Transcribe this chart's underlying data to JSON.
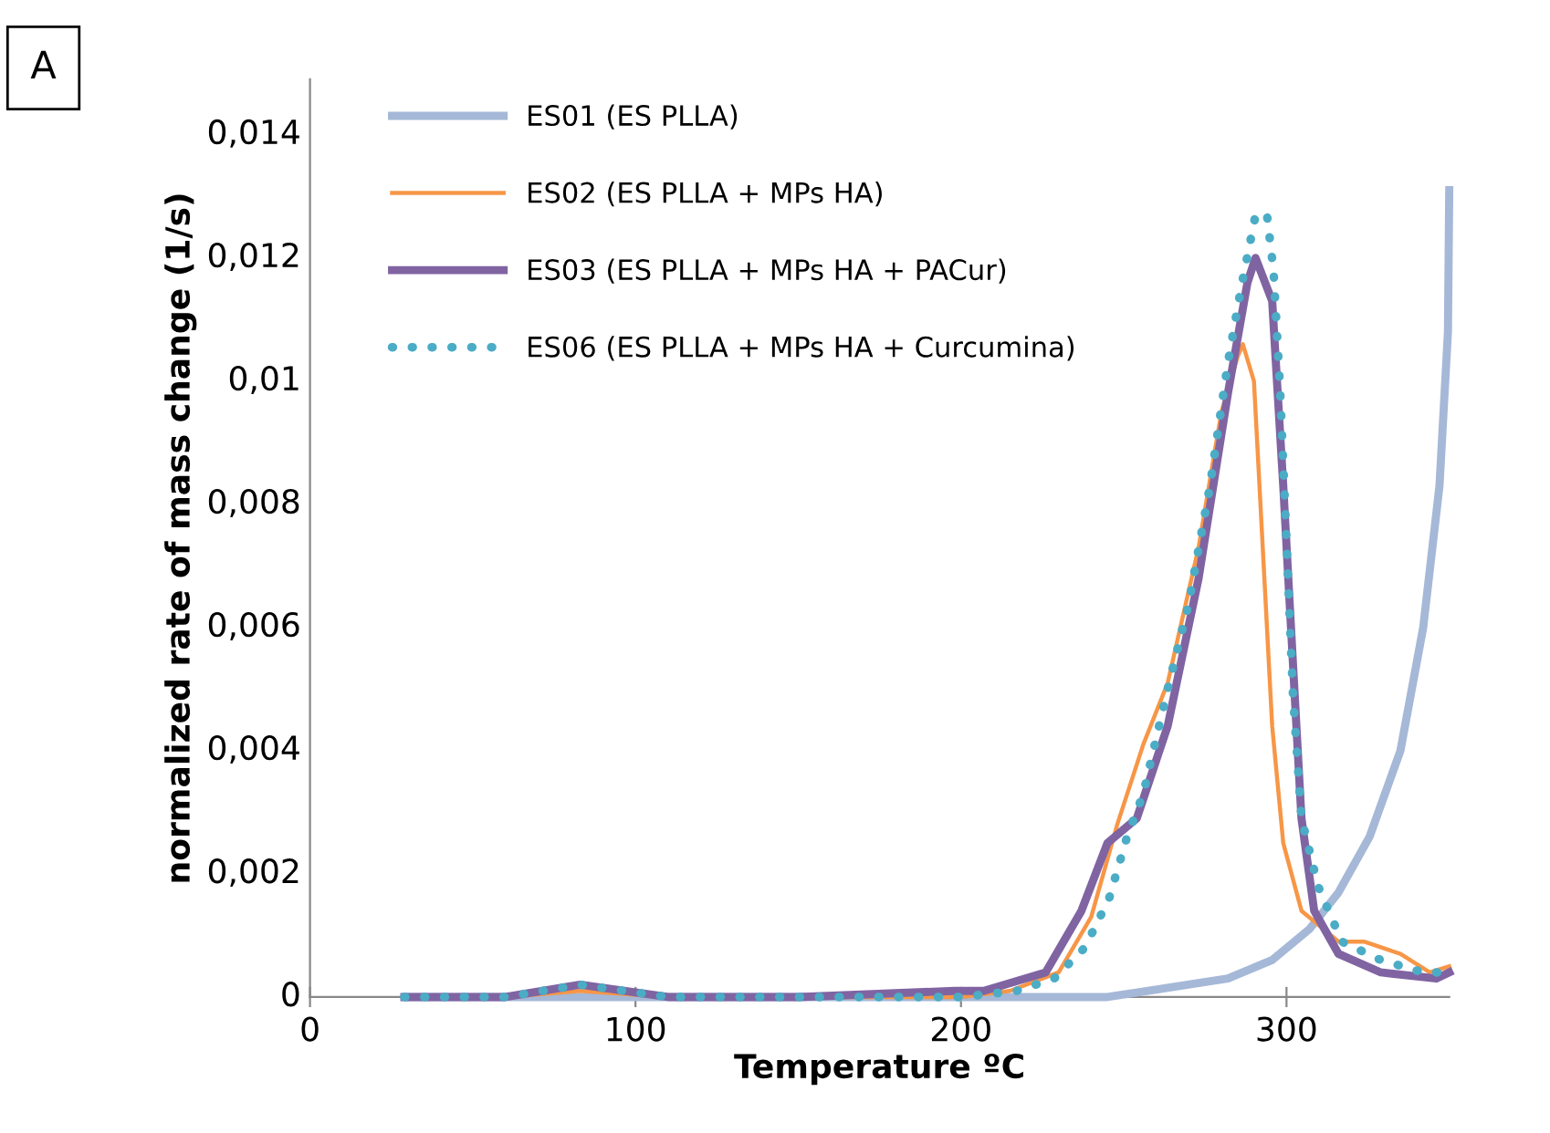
{
  "chart_data": {
    "type": "line",
    "xlabel": "Temperature ºC",
    "ylabel": "normalized rate of mass change (1/s)",
    "annotations": [
      "A"
    ],
    "xlim": [
      0,
      350
    ],
    "xticks": [
      0,
      100,
      200,
      300
    ],
    "ylim": [
      0,
      0.0149
    ],
    "yticks": [
      0,
      {
        "value": 0.002,
        "label": "0,002"
      },
      {
        "value": 0.004,
        "label": "0,004"
      },
      {
        "value": 0.006,
        "label": "0,006"
      },
      {
        "value": 0.008,
        "label": "0,008"
      },
      {
        "value": 0.01,
        "label": "0,01"
      },
      {
        "value": 0.012,
        "label": "0,012"
      },
      {
        "value": 0.014,
        "label": "0,014"
      }
    ],
    "grid": false,
    "legend": "top left",
    "marker": "none",
    "series": [
      {
        "name": "ES01 (ES PLLA)",
        "color": "#a5b8d7",
        "line_style": "solid",
        "x": [
          30,
          100,
          200,
          245,
          282,
          295.6,
          307,
          316,
          325.5,
          335,
          342,
          347,
          349.6,
          350
        ],
        "values": [
          0,
          0,
          0,
          0,
          0.0003,
          0.0006,
          0.0011,
          0.0017,
          0.0026,
          0.004,
          0.006,
          0.0083,
          0.0108,
          0.0131
        ]
      },
      {
        "name": "ES02 (ES PLLA + MPs HA)",
        "color": "#f79646",
        "line_style": "solid",
        "x": [
          30,
          60,
          83,
          110,
          150,
          200,
          215,
          230,
          240,
          248,
          256,
          263.5,
          273,
          280,
          285,
          286.6,
          290,
          292.6,
          295.6,
          299,
          304.6,
          316,
          323.8,
          335,
          344,
          350
        ],
        "values": [
          0,
          0,
          0.0001,
          0,
          0,
          0,
          0.0001,
          0.0004,
          0.0013,
          0.0028,
          0.0041,
          0.0051,
          0.0073,
          0.0095,
          0.0104,
          0.0106,
          0.01,
          0.0074,
          0.0044,
          0.0025,
          0.0014,
          0.0009,
          0.0009,
          0.0007,
          0.0004,
          0.0005
        ]
      },
      {
        "name": "ES03 (ES PLLA + MPs HA + PACur)",
        "color": "#8064a2",
        "line_style": "solid",
        "x": [
          29,
          60,
          83,
          110,
          150,
          198,
          207,
          226,
          237,
          245,
          254,
          263.5,
          273,
          282,
          288,
          290.5,
          295.6,
          299,
          302,
          304.6,
          308.5,
          316,
          329,
          346,
          350
        ],
        "values": [
          0,
          0,
          0.0002,
          0,
          0,
          0.0001,
          0.0001,
          0.0004,
          0.0014,
          0.0025,
          0.0029,
          0.0044,
          0.0068,
          0.0098,
          0.0116,
          0.012,
          0.0113,
          0.0083,
          0.0054,
          0.0029,
          0.0014,
          0.0007,
          0.0004,
          0.0003,
          0.0004
        ]
      },
      {
        "name": "ES06 (ES PLLA + MPs HA + Curcumina)",
        "color": "#4bacc6",
        "line_style": "dotted",
        "x": [
          29,
          60,
          83,
          110,
          150,
          200,
          217,
          228.6,
          238,
          245.5,
          251,
          256,
          263.5,
          270,
          276.5,
          282,
          286,
          289,
          290.5,
          294,
          296,
          298,
          300,
          302,
          304.6,
          309.7,
          317,
          329,
          342,
          348
        ],
        "values": [
          0,
          0,
          0.0002,
          0,
          0,
          0,
          0.0001,
          0.0003,
          0.0008,
          0.0016,
          0.0026,
          0.0033,
          0.005,
          0.0064,
          0.0083,
          0.0103,
          0.0115,
          0.0123,
          0.0127,
          0.0127,
          0.0118,
          0.0099,
          0.0074,
          0.0049,
          0.0029,
          0.0018,
          0.0009,
          0.0006,
          0.0004,
          0.0004
        ]
      }
    ]
  }
}
